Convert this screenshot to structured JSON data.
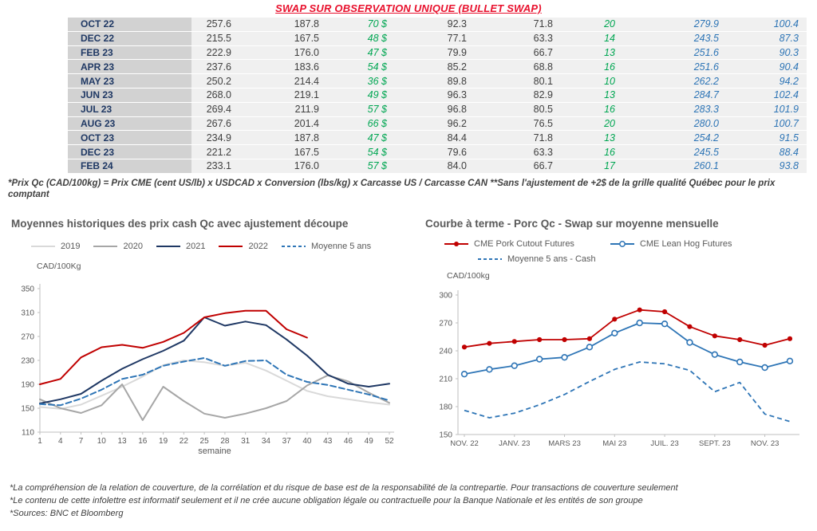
{
  "page_title": "SWAP SUR OBSERVATION UNIQUE (BULLET SWAP)",
  "colors": {
    "accent_red": "#e8112d",
    "series_red": "#c00000",
    "series_navy": "#1f3864",
    "series_blue": "#2e75b6",
    "table_green": "#00a652",
    "table_blue": "#2e75b6",
    "axis_gray": "#595959"
  },
  "table": {
    "rows": [
      [
        "OCT 22",
        "257.6",
        "187.8",
        "70 $",
        "92.3",
        "71.8",
        "20",
        "279.9",
        "100.4"
      ],
      [
        "DEC 22",
        "215.5",
        "167.5",
        "48 $",
        "77.1",
        "63.3",
        "14",
        "243.5",
        "87.3"
      ],
      [
        "FEB 23",
        "222.9",
        "176.0",
        "47 $",
        "79.9",
        "66.7",
        "13",
        "251.6",
        "90.3"
      ],
      [
        "APR 23",
        "237.6",
        "183.6",
        "54 $",
        "85.2",
        "68.8",
        "16",
        "251.6",
        "90.4"
      ],
      [
        "MAY 23",
        "250.2",
        "214.4",
        "36 $",
        "89.8",
        "80.1",
        "10",
        "262.2",
        "94.2"
      ],
      [
        "JUN 23",
        "268.0",
        "219.1",
        "49 $",
        "96.3",
        "82.9",
        "13",
        "284.7",
        "102.4"
      ],
      [
        "JUL 23",
        "269.4",
        "211.9",
        "57 $",
        "96.8",
        "80.5",
        "16",
        "283.3",
        "101.9"
      ],
      [
        "AUG 23",
        "267.6",
        "201.4",
        "66 $",
        "96.2",
        "76.5",
        "20",
        "280.0",
        "100.7"
      ],
      [
        "OCT 23",
        "234.9",
        "187.8",
        "47 $",
        "84.4",
        "71.8",
        "13",
        "254.2",
        "91.5"
      ],
      [
        "DEC 23",
        "221.2",
        "167.5",
        "54 $",
        "79.6",
        "63.3",
        "16",
        "245.5",
        "88.4"
      ],
      [
        "FEB 24",
        "233.1",
        "176.0",
        "57 $",
        "84.0",
        "66.7",
        "17",
        "260.1",
        "93.8"
      ]
    ]
  },
  "table_footnote": "*Prix Qc (CAD/100kg) = Prix CME (cent US/lb) x USDCAD x Conversion (lbs/kg) x Carcasse US / Carcasse CAN **Sans l'ajustement de +2$ de la grille qualité Québec pour le prix comptant",
  "chart_data": [
    {
      "type": "line",
      "title": "Moyennes historiques des prix cash Qc avec ajustement découpe",
      "ylabel": "CAD/100Kg",
      "xlabel": "semaine",
      "xlim": [
        1,
        52
      ],
      "ylim": [
        110,
        350
      ],
      "yticks": [
        110,
        150,
        190,
        230,
        270,
        310,
        350
      ],
      "xticks": [
        1,
        4,
        7,
        10,
        13,
        16,
        19,
        22,
        25,
        28,
        31,
        34,
        37,
        40,
        43,
        46,
        49,
        52
      ],
      "grid": false,
      "legend_position": "top",
      "series": [
        {
          "name": "2019",
          "color": "#d9d9d9",
          "style": "solid",
          "x": [
            1,
            4,
            7,
            10,
            13,
            16,
            19,
            22,
            25,
            28,
            31,
            34,
            37,
            40,
            43,
            46,
            49,
            52
          ],
          "y": [
            152,
            149,
            156,
            171,
            186,
            203,
            222,
            230,
            227,
            221,
            226,
            213,
            196,
            179,
            170,
            165,
            160,
            156
          ]
        },
        {
          "name": "2020",
          "color": "#a6a6a6",
          "style": "solid",
          "x": [
            1,
            4,
            7,
            10,
            13,
            16,
            19,
            22,
            25,
            28,
            31,
            34,
            37,
            40,
            43,
            46,
            49,
            52
          ],
          "y": [
            165,
            150,
            142,
            155,
            190,
            130,
            186,
            162,
            141,
            134,
            141,
            150,
            162,
            188,
            205,
            195,
            176,
            159
          ]
        },
        {
          "name": "2021",
          "color": "#1f3864",
          "style": "solid",
          "x": [
            1,
            4,
            7,
            10,
            13,
            16,
            19,
            22,
            25,
            28,
            31,
            34,
            37,
            40,
            43,
            46,
            49,
            52
          ],
          "y": [
            158,
            165,
            174,
            196,
            216,
            232,
            246,
            263,
            302,
            288,
            295,
            289,
            265,
            238,
            206,
            191,
            186,
            191
          ]
        },
        {
          "name": "2022",
          "color": "#c00000",
          "style": "solid",
          "x": [
            1,
            4,
            7,
            10,
            13,
            16,
            19,
            22,
            25,
            28,
            31,
            34,
            37,
            40
          ],
          "y": [
            190,
            199,
            235,
            252,
            256,
            251,
            261,
            276,
            302,
            309,
            313,
            313,
            282,
            268
          ]
        },
        {
          "name": "Moyenne 5 ans",
          "color": "#2e75b6",
          "style": "dashed",
          "x": [
            1,
            4,
            7,
            10,
            13,
            16,
            19,
            22,
            25,
            28,
            31,
            34,
            37,
            40,
            43,
            46,
            49,
            52
          ],
          "y": [
            157,
            155,
            166,
            181,
            199,
            206,
            221,
            228,
            234,
            221,
            229,
            230,
            206,
            194,
            189,
            181,
            173,
            163
          ]
        }
      ]
    },
    {
      "type": "line",
      "title": "Courbe à terme - Porc Qc - Swap sur moyenne mensuelle",
      "ylabel": "CAD/100kg",
      "xlabel": "",
      "ylim": [
        150,
        300
      ],
      "yticks": [
        150,
        180,
        210,
        240,
        270,
        300
      ],
      "x_count": 14,
      "xticks": {
        "indices": [
          0,
          2,
          4,
          6,
          8,
          10,
          12
        ],
        "labels": [
          "NOV. 22",
          "JANV. 23",
          "MARS 23",
          "MAI 23",
          "JUIL. 23",
          "SEPT. 23",
          "NOV. 23"
        ]
      },
      "grid": false,
      "legend_position": "top",
      "series": [
        {
          "name": "CME Pork Cutout Futures",
          "color": "#c00000",
          "style": "solid",
          "marker": "dot",
          "values": [
            244,
            248,
            250,
            252,
            252,
            253,
            274,
            284,
            282,
            266,
            256,
            252,
            246,
            253
          ]
        },
        {
          "name": "CME Lean Hog Futures",
          "color": "#2e75b6",
          "style": "solid",
          "marker": "circle",
          "values": [
            215,
            220,
            224,
            231,
            233,
            244,
            259,
            270,
            269,
            249,
            236,
            228,
            222,
            229
          ]
        },
        {
          "name": "Moyenne 5 ans - Cash",
          "color": "#2e75b6",
          "style": "dashed",
          "values": [
            176,
            168,
            173,
            182,
            193,
            207,
            220,
            228,
            226,
            219,
            196,
            206,
            172,
            164
          ]
        }
      ]
    }
  ],
  "disclaimers": [
    "*La compréhension de la relation de couverture, de la corrélation et du risque de base est de la responsabilité de la contrepartie. Pour transactions de couverture seulement",
    "*Le contenu de cette infolettre est informatif seulement et il ne crée aucune obligation légale ou contractuelle pour la Banque Nationale et les entités de son groupe",
    "*Sources: BNC et Bloomberg"
  ]
}
